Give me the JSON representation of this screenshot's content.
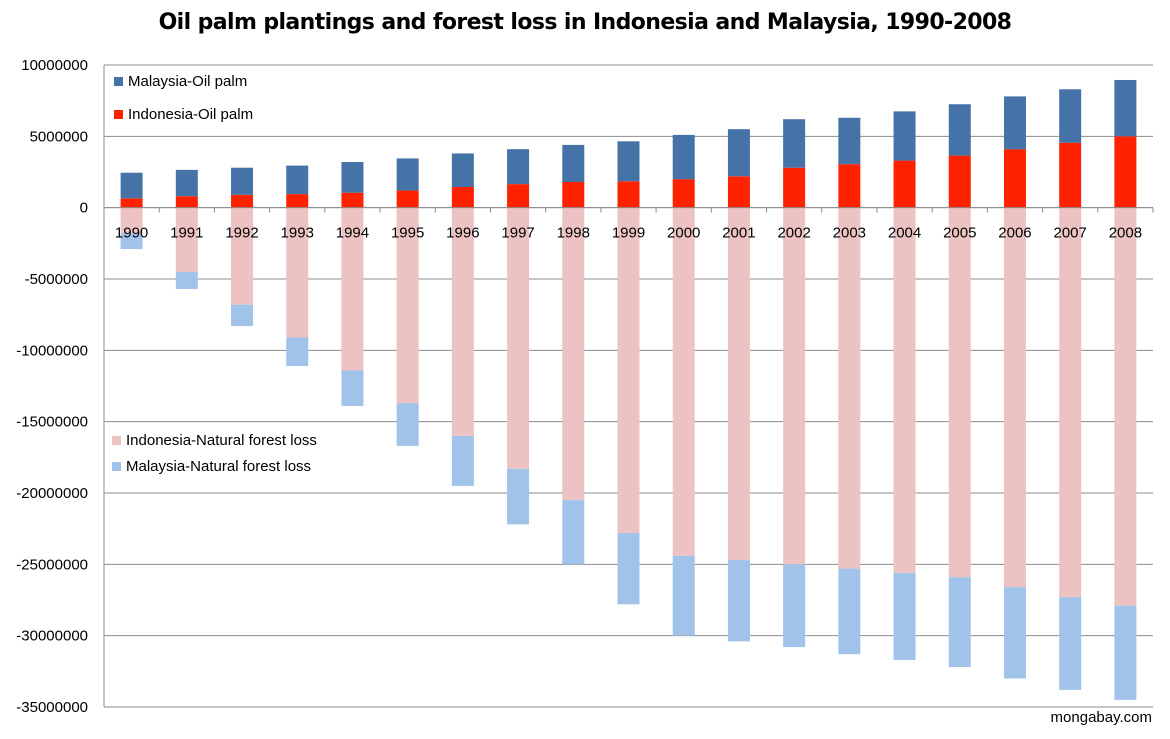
{
  "chart_data": {
    "type": "bar",
    "title": "Oil palm plantings and forest loss in Indonesia and Malaysia, 1990-2008",
    "xlabel": "",
    "ylabel": "",
    "ylim": [
      -35000000,
      10000000
    ],
    "yticks": [
      10000000,
      5000000,
      0,
      -5000000,
      -10000000,
      -15000000,
      -20000000,
      -25000000,
      -30000000,
      -35000000
    ],
    "ytick_labels": [
      "10000000",
      "5000000",
      "0",
      "-5000000",
      "-10000000",
      "-15000000",
      "-20000000",
      "-25000000",
      "-30000000",
      "-35000000"
    ],
    "grid": true,
    "stacked": true,
    "categories": [
      "1990",
      "1991",
      "1992",
      "1993",
      "1994",
      "1995",
      "1996",
      "1997",
      "1998",
      "1999",
      "2000",
      "2001",
      "2002",
      "2003",
      "2004",
      "2005",
      "2006",
      "2007",
      "2008"
    ],
    "series": [
      {
        "name": "Indonesia-Oil palm",
        "color": "#ff2200",
        "stack": "positive",
        "values": [
          650000,
          800000,
          900000,
          950000,
          1050000,
          1200000,
          1450000,
          1650000,
          1800000,
          1850000,
          2000000,
          2200000,
          2800000,
          3050000,
          3300000,
          3650000,
          4100000,
          4550000,
          5000000
        ]
      },
      {
        "name": "Malaysia-Oil palm",
        "color": "#4573a7",
        "stack": "positive",
        "values": [
          1800000,
          1850000,
          1900000,
          2000000,
          2150000,
          2250000,
          2350000,
          2450000,
          2600000,
          2800000,
          3100000,
          3300000,
          3400000,
          3250000,
          3450000,
          3600000,
          3700000,
          3750000,
          3950000
        ]
      },
      {
        "name": "Indonesia-Natural forest loss",
        "color": "#ecc3c2",
        "stack": "negative",
        "values": [
          -1800000,
          -4500000,
          -6800000,
          -9100000,
          -11400000,
          -13700000,
          -16000000,
          -18300000,
          -20500000,
          -22800000,
          -24400000,
          -24700000,
          -25000000,
          -25300000,
          -25600000,
          -25900000,
          -26600000,
          -27300000,
          -27900000
        ]
      },
      {
        "name": "Malaysia-Natural forest loss",
        "color": "#a1c3e9",
        "stack": "negative",
        "values": [
          -1100000,
          -1200000,
          -1500000,
          -2000000,
          -2500000,
          -3000000,
          -3500000,
          -3900000,
          -4500000,
          -5000000,
          -5600000,
          -5700000,
          -5800000,
          -6000000,
          -6100000,
          -6300000,
          -6400000,
          -6500000,
          -6600000
        ]
      }
    ],
    "legend_top": [
      "Malaysia-Oil palm",
      "Indonesia-Oil palm"
    ],
    "legend_bottom": [
      "Indonesia-Natural forest loss",
      "Malaysia-Natural forest loss"
    ]
  },
  "credit": "mongabay.com"
}
